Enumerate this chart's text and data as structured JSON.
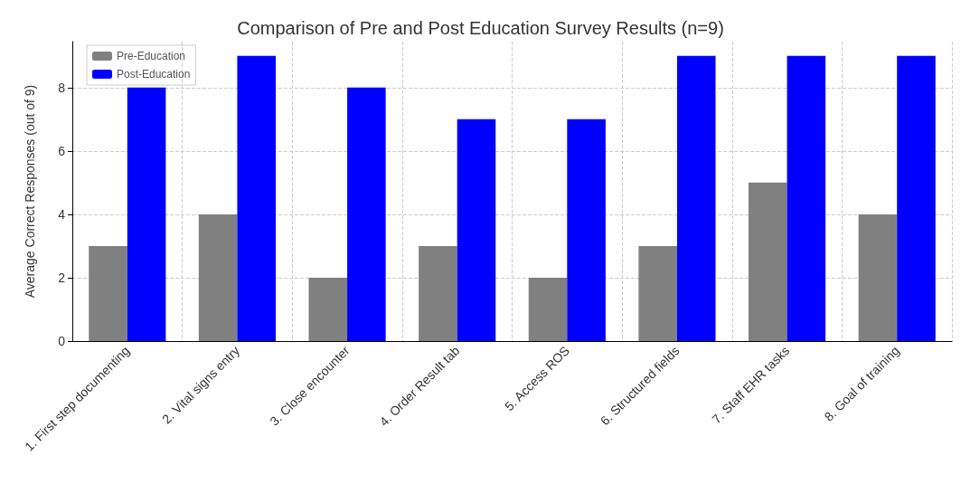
{
  "chart_data": {
    "type": "bar",
    "title": "Comparison of Pre and Post Education Survey Results (n=9)",
    "ylabel": "Average Correct Responses (out of 9)",
    "categories": [
      "1. First step documenting",
      "2. Vital signs entry",
      "3. Close encounter",
      "4. Order Result tab",
      "5. Access ROS",
      "6. Structured fields",
      "7. Staff EHR tasks",
      "8. Goal of training"
    ],
    "series": [
      {
        "name": "Pre-Education",
        "color": "#808080",
        "values": [
          3,
          4,
          2,
          3,
          2,
          3,
          5,
          4
        ]
      },
      {
        "name": "Post-Education",
        "color": "#0000ff",
        "values": [
          8,
          9,
          8,
          7,
          7,
          9,
          9,
          9
        ]
      }
    ],
    "ylim": [
      0,
      9.45
    ],
    "yticks": [
      0,
      2,
      4,
      6,
      8
    ],
    "grid": true,
    "legend": "top left"
  }
}
